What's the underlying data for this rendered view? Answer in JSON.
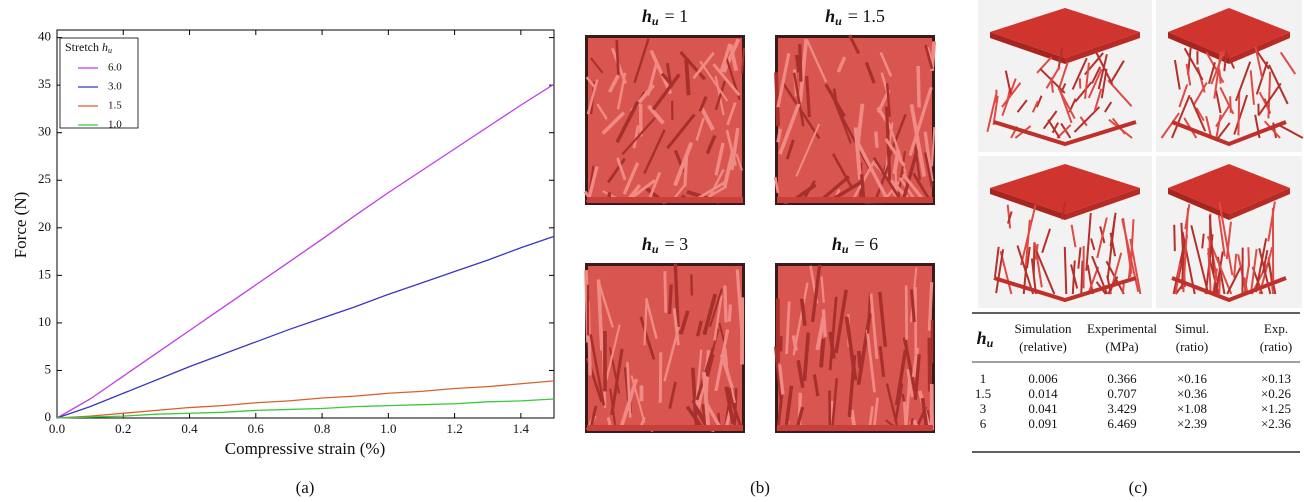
{
  "chart_data": {
    "type": "line",
    "x_label": "Compressive strain (%)",
    "y_label": "Force (N)",
    "legend_title": "Stretch",
    "legend_symbol": "h",
    "legend_symbol_sub": "u",
    "legend": "upper left",
    "x": [
      0,
      0.1,
      0.2,
      0.3,
      0.4,
      0.5,
      0.6,
      0.7,
      0.8,
      0.9,
      1.0,
      1.1,
      1.2,
      1.3,
      1.4,
      1.5
    ],
    "series": [
      {
        "name": "6.0",
        "color": "#bf3fe0",
        "values": [
          0,
          2.0,
          4.4,
          6.8,
          9.2,
          11.6,
          14.0,
          16.4,
          18.8,
          21.3,
          23.7,
          26.0,
          28.3,
          30.6,
          32.9,
          35.1
        ]
      },
      {
        "name": "3.0",
        "color": "#3a36c0",
        "values": [
          0,
          1.2,
          2.6,
          4.0,
          5.4,
          6.7,
          8.0,
          9.3,
          10.5,
          11.7,
          13.0,
          14.2,
          15.4,
          16.6,
          17.9,
          19.1
        ]
      },
      {
        "name": "1.5",
        "color": "#d8602c",
        "values": [
          0,
          0.2,
          0.5,
          0.8,
          1.1,
          1.3,
          1.6,
          1.8,
          2.1,
          2.3,
          2.6,
          2.8,
          3.1,
          3.3,
          3.6,
          3.9
        ]
      },
      {
        "name": "1.0",
        "color": "#3cc83c",
        "values": [
          0,
          0.1,
          0.2,
          0.4,
          0.5,
          0.6,
          0.8,
          0.9,
          1.0,
          1.2,
          1.3,
          1.4,
          1.5,
          1.7,
          1.8,
          2.0
        ]
      }
    ],
    "xlim": [
      0,
      1.5
    ],
    "ylim": [
      0,
      40.8
    ],
    "xticks": [
      {
        "value": 0,
        "label": "0.0"
      },
      0.2,
      0.4,
      0.6,
      0.8,
      {
        "value": 1,
        "label": "1.0"
      },
      1.2,
      1.4
    ],
    "yticks": [
      0,
      5,
      10,
      15,
      20,
      25,
      30,
      35,
      40
    ]
  },
  "panel_b": {
    "images": [
      {
        "symbol": "h",
        "sub": "u",
        "rest": "= 1"
      },
      {
        "symbol": "h",
        "sub": "u",
        "rest": "= 1.5"
      },
      {
        "symbol": "h",
        "sub": "u",
        "rest": "= 3"
      },
      {
        "symbol": "h",
        "sub": "u",
        "rest": "= 6"
      }
    ]
  },
  "panel_c": {
    "table": {
      "header": [
        {
          "symbol": "h",
          "sub": "u"
        },
        {
          "line1": "Simulation",
          "line2": "(relative)"
        },
        {
          "line1": "Experimental",
          "line2": "(MPa)"
        },
        {
          "line1": "Simul.",
          "line2": "(ratio)"
        },
        {
          "line1": "Exp.",
          "line2": "(ratio)"
        }
      ],
      "rows": [
        [
          "1",
          "0.006",
          "0.366",
          "×0.16",
          "×0.13"
        ],
        [
          "1.5",
          "0.014",
          "0.707",
          "×0.36",
          "×0.26"
        ],
        [
          "3",
          "0.041",
          "3.429",
          "×1.08",
          "×1.25"
        ],
        [
          "6",
          "0.091",
          "6.469",
          "×2.39",
          "×2.36"
        ]
      ]
    }
  },
  "captions": [
    "(a)",
    "(b)",
    "(c)"
  ]
}
